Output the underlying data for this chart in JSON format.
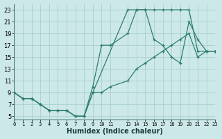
{
  "xlabel": "Humidex (Indice chaleur)",
  "bg_color": "#cce8e8",
  "grid_color": "#aacece",
  "line_color": "#2d7d6e",
  "line1_x": [
    0,
    1,
    2,
    3,
    4,
    5,
    6,
    7,
    8,
    9,
    13,
    14,
    15,
    16,
    17,
    18,
    19,
    20,
    21,
    22,
    23
  ],
  "line1_y": [
    9,
    8,
    8,
    7,
    6,
    6,
    6,
    5,
    5,
    9,
    23,
    23,
    23,
    23,
    23,
    23,
    23,
    23,
    16,
    16,
    16
  ],
  "line2_x": [
    0,
    1,
    2,
    3,
    4,
    5,
    6,
    7,
    8,
    9,
    10,
    11,
    13,
    14,
    15,
    16,
    17,
    18,
    19,
    20,
    21,
    22,
    23
  ],
  "line2_y": [
    9,
    8,
    8,
    7,
    6,
    6,
    6,
    5,
    5,
    10,
    17,
    17,
    19,
    23,
    23,
    18,
    17,
    15,
    14,
    21,
    18,
    16,
    16
  ],
  "line3_x": [
    0,
    1,
    2,
    3,
    4,
    5,
    6,
    7,
    8,
    9,
    10,
    11,
    13,
    14,
    15,
    16,
    17,
    18,
    19,
    20,
    21,
    22,
    23
  ],
  "line3_y": [
    9,
    8,
    8,
    7,
    6,
    6,
    6,
    5,
    5,
    9,
    9,
    10,
    11,
    13,
    14,
    15,
    16,
    17,
    18,
    19,
    15,
    16,
    16
  ],
  "xlim": [
    0,
    23
  ],
  "ylim": [
    4.5,
    24
  ],
  "xtick_positions": [
    0,
    1,
    2,
    3,
    4,
    5,
    6,
    7,
    8,
    9,
    10,
    11,
    13,
    14,
    15,
    16,
    17,
    18,
    19,
    20,
    21,
    22,
    23
  ],
  "xtick_labels": [
    "0",
    "1",
    "2",
    "3",
    "4",
    "5",
    "6",
    "7",
    "8",
    "9",
    "10",
    "11",
    "13",
    "14",
    "15",
    "16",
    "17",
    "18",
    "19",
    "20",
    "21",
    "22",
    "23"
  ],
  "ytick_positions": [
    5,
    7,
    9,
    11,
    13,
    15,
    17,
    19,
    21,
    23
  ],
  "ytick_labels": [
    "5",
    "7",
    "9",
    "11",
    "13",
    "15",
    "17",
    "19",
    "21",
    "23"
  ]
}
